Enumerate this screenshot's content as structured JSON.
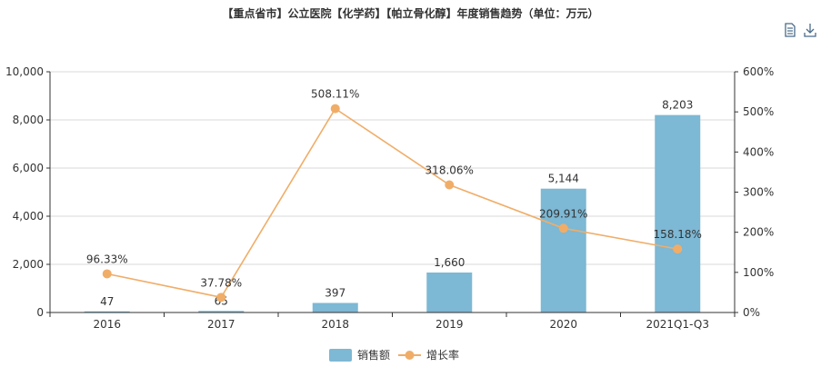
{
  "title": "【重点省市】公立医院【化学药】【帕立骨化醇】年度销售趋势（单位：万元）",
  "toolbox": {
    "icons": [
      "data-view-icon",
      "download-icon"
    ]
  },
  "chart_data": {
    "type": "bar",
    "categories": [
      "2016",
      "2017",
      "2018",
      "2019",
      "2020",
      "2021Q1-Q3"
    ],
    "series": [
      {
        "name": "销售额",
        "type": "bar",
        "axis": "left",
        "values": [
          47,
          65,
          397,
          1660,
          5144,
          8203
        ],
        "labels": [
          "47",
          "65",
          "397",
          "1,660",
          "5,144",
          "8,203"
        ],
        "color": "#7db8d4"
      },
      {
        "name": "增长率",
        "type": "line",
        "axis": "right",
        "values": [
          96.33,
          37.78,
          508.11,
          318.06,
          209.91,
          158.18
        ],
        "labels": [
          "96.33%",
          "37.78%",
          "508.11%",
          "318.06%",
          "209.91%",
          "158.18%"
        ],
        "color": "#f0ad68"
      }
    ],
    "y_left": {
      "min": 0,
      "max": 10000,
      "ticks": [
        "0",
        "2,000",
        "4,000",
        "6,000",
        "8,000",
        "10,000"
      ]
    },
    "y_right": {
      "min": 0,
      "max": 600,
      "ticks": [
        "0%",
        "100%",
        "200%",
        "300%",
        "400%",
        "500%",
        "600%"
      ]
    },
    "grid": true,
    "legend_position": "bottom"
  }
}
